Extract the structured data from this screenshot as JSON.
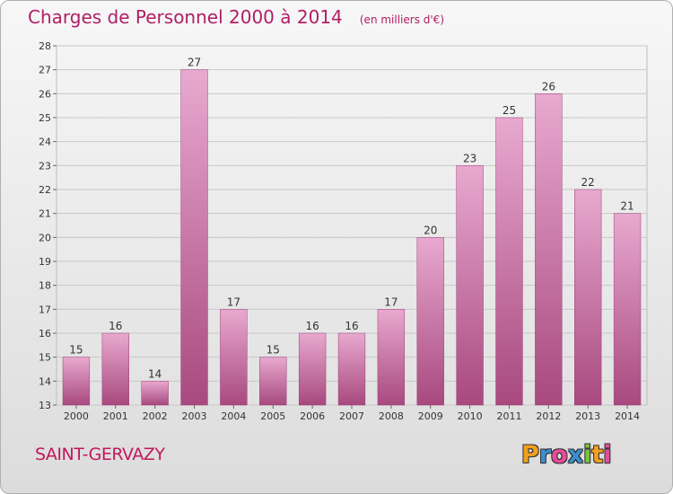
{
  "chart_data": {
    "type": "bar",
    "title": "Charges de Personnel 2000 à 2014",
    "subtitle": "(en milliers d'€)",
    "categories": [
      "2000",
      "2001",
      "2002",
      "2003",
      "2004",
      "2005",
      "2006",
      "2007",
      "2008",
      "2009",
      "2010",
      "2011",
      "2012",
      "2013",
      "2014"
    ],
    "values": [
      15,
      16,
      14,
      27,
      17,
      15,
      16,
      16,
      17,
      20,
      23,
      25,
      26,
      22,
      21
    ],
    "ylim": [
      13,
      28
    ],
    "yticks": [
      13,
      14,
      15,
      16,
      17,
      18,
      19,
      20,
      21,
      22,
      23,
      24,
      25,
      26,
      27,
      28
    ],
    "grid": true,
    "bar_color_top": "#e8a9cf",
    "bar_color_bottom": "#a8497f"
  },
  "footer": {
    "location": "SAINT-GERVAZY",
    "brand": "Proxiti",
    "brand_letters": [
      {
        "ch": "P",
        "color": "#f0a020"
      },
      {
        "ch": "r",
        "color": "#3b8ed0"
      },
      {
        "ch": "o",
        "color": "#e84b9a"
      },
      {
        "ch": "x",
        "color": "#3b8ed0"
      },
      {
        "ch": "i",
        "color": "#7cc242"
      },
      {
        "ch": "t",
        "color": "#f0a020"
      },
      {
        "ch": "i",
        "color": "#e84b9a"
      }
    ]
  },
  "colors": {
    "accent": "#b01e66",
    "grid": "#c8c8c8",
    "axis_text": "#333333"
  }
}
